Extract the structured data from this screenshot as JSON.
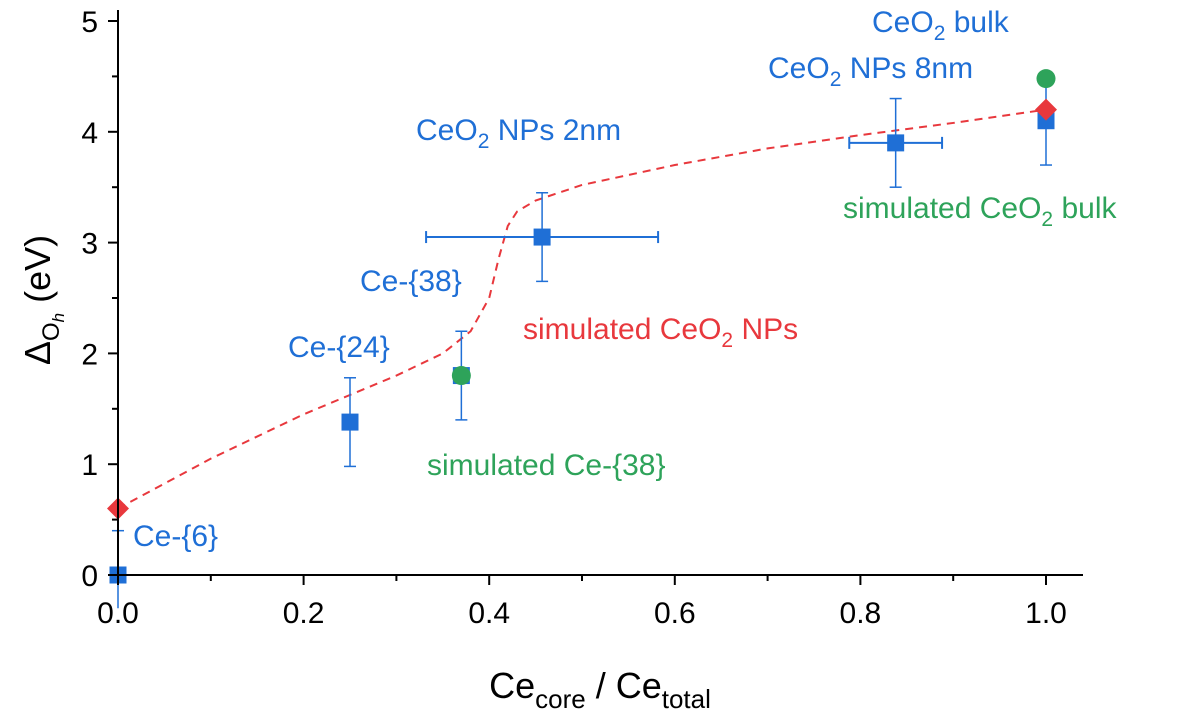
{
  "chart_data": {
    "type": "scatter",
    "xlabel": {
      "main": "Ce",
      "sub1": "core",
      "sep": " / Ce",
      "sub2": "total"
    },
    "ylabel": {
      "main": "Δ",
      "sub": "O",
      "subsub": "h",
      "unit": " (eV)"
    },
    "xlim": [
      0,
      1.0
    ],
    "ylim": [
      0,
      5
    ],
    "x_ticks": [
      "0.0",
      "0.2",
      "0.4",
      "0.6",
      "0.8",
      "1.0"
    ],
    "y_ticks": [
      "0",
      "1",
      "2",
      "3",
      "4",
      "5"
    ],
    "grid": false,
    "colors": {
      "experimental": "#1f6fd6",
      "simulated_fit": "#e8383d",
      "simulated_points": "#2ea35a"
    },
    "series": [
      {
        "marker": "square",
        "color": "#1f6fd6",
        "points": [
          {
            "x": 0.0,
            "y": 0.0,
            "yerr": 0.4,
            "xerr": 0
          },
          {
            "x": 0.25,
            "y": 1.38,
            "yerr": 0.4,
            "xerr": 0
          },
          {
            "x": 0.37,
            "y": 1.8,
            "yerr": 0.4,
            "xerr": 0
          },
          {
            "x": 0.457,
            "y": 3.05,
            "yerr": 0.4,
            "xerr": 0.125
          },
          {
            "x": 0.838,
            "y": 3.9,
            "yerr": 0.4,
            "xerr": 0.05
          },
          {
            "x": 1.0,
            "y": 4.1,
            "yerr": 0.4,
            "xerr": 0
          }
        ]
      },
      {
        "marker": "circle",
        "color": "#2ea35a",
        "points": [
          {
            "x": 0.37,
            "y": 1.8
          },
          {
            "x": 1.0,
            "y": 4.48
          }
        ]
      },
      {
        "marker": "diamond",
        "color": "#e8383d",
        "points": [
          {
            "x": 0.0,
            "y": 0.6
          },
          {
            "x": 1.0,
            "y": 4.2
          }
        ]
      },
      {
        "type": "line",
        "style": "dashed",
        "color": "#e8383d",
        "x": [
          0.0,
          0.1,
          0.2,
          0.3,
          0.35,
          0.38,
          0.4,
          0.41,
          0.42,
          0.43,
          0.45,
          0.5,
          0.6,
          0.7,
          0.8,
          0.9,
          1.0
        ],
        "y": [
          0.6,
          1.05,
          1.45,
          1.8,
          2.0,
          2.2,
          2.5,
          2.85,
          3.15,
          3.28,
          3.38,
          3.52,
          3.7,
          3.85,
          3.97,
          4.08,
          4.2
        ]
      }
    ],
    "annotations": [
      {
        "key": "ce6",
        "color": "#1f6fd6",
        "parts": [
          {
            "t": "Ce-{6}"
          }
        ]
      },
      {
        "key": "ce24",
        "color": "#1f6fd6",
        "parts": [
          {
            "t": "Ce-{24}"
          }
        ]
      },
      {
        "key": "ce38",
        "color": "#1f6fd6",
        "parts": [
          {
            "t": "Ce-{38}"
          }
        ]
      },
      {
        "key": "nps2",
        "color": "#1f6fd6",
        "parts": [
          {
            "t": "CeO"
          },
          {
            "t": "2",
            "sub": true
          },
          {
            "t": " NPs 2nm"
          }
        ]
      },
      {
        "key": "nps8",
        "color": "#1f6fd6",
        "parts": [
          {
            "t": "CeO"
          },
          {
            "t": "2",
            "sub": true
          },
          {
            "t": " NPs 8nm"
          }
        ]
      },
      {
        "key": "bulk",
        "color": "#1f6fd6",
        "parts": [
          {
            "t": "CeO"
          },
          {
            "t": "2",
            "sub": true
          },
          {
            "t": " bulk"
          }
        ]
      },
      {
        "key": "sim_nps",
        "color": "#e8383d",
        "parts": [
          {
            "t": "simulated CeO"
          },
          {
            "t": "2",
            "sub": true
          },
          {
            "t": " NPs"
          }
        ]
      },
      {
        "key": "sim_ce38",
        "color": "#2ea35a",
        "parts": [
          {
            "t": "simulated Ce-{38}"
          }
        ]
      },
      {
        "key": "sim_bulk",
        "color": "#2ea35a",
        "parts": [
          {
            "t": "simulated CeO"
          },
          {
            "t": "2",
            "sub": true
          },
          {
            "t": " bulk"
          }
        ]
      }
    ]
  }
}
